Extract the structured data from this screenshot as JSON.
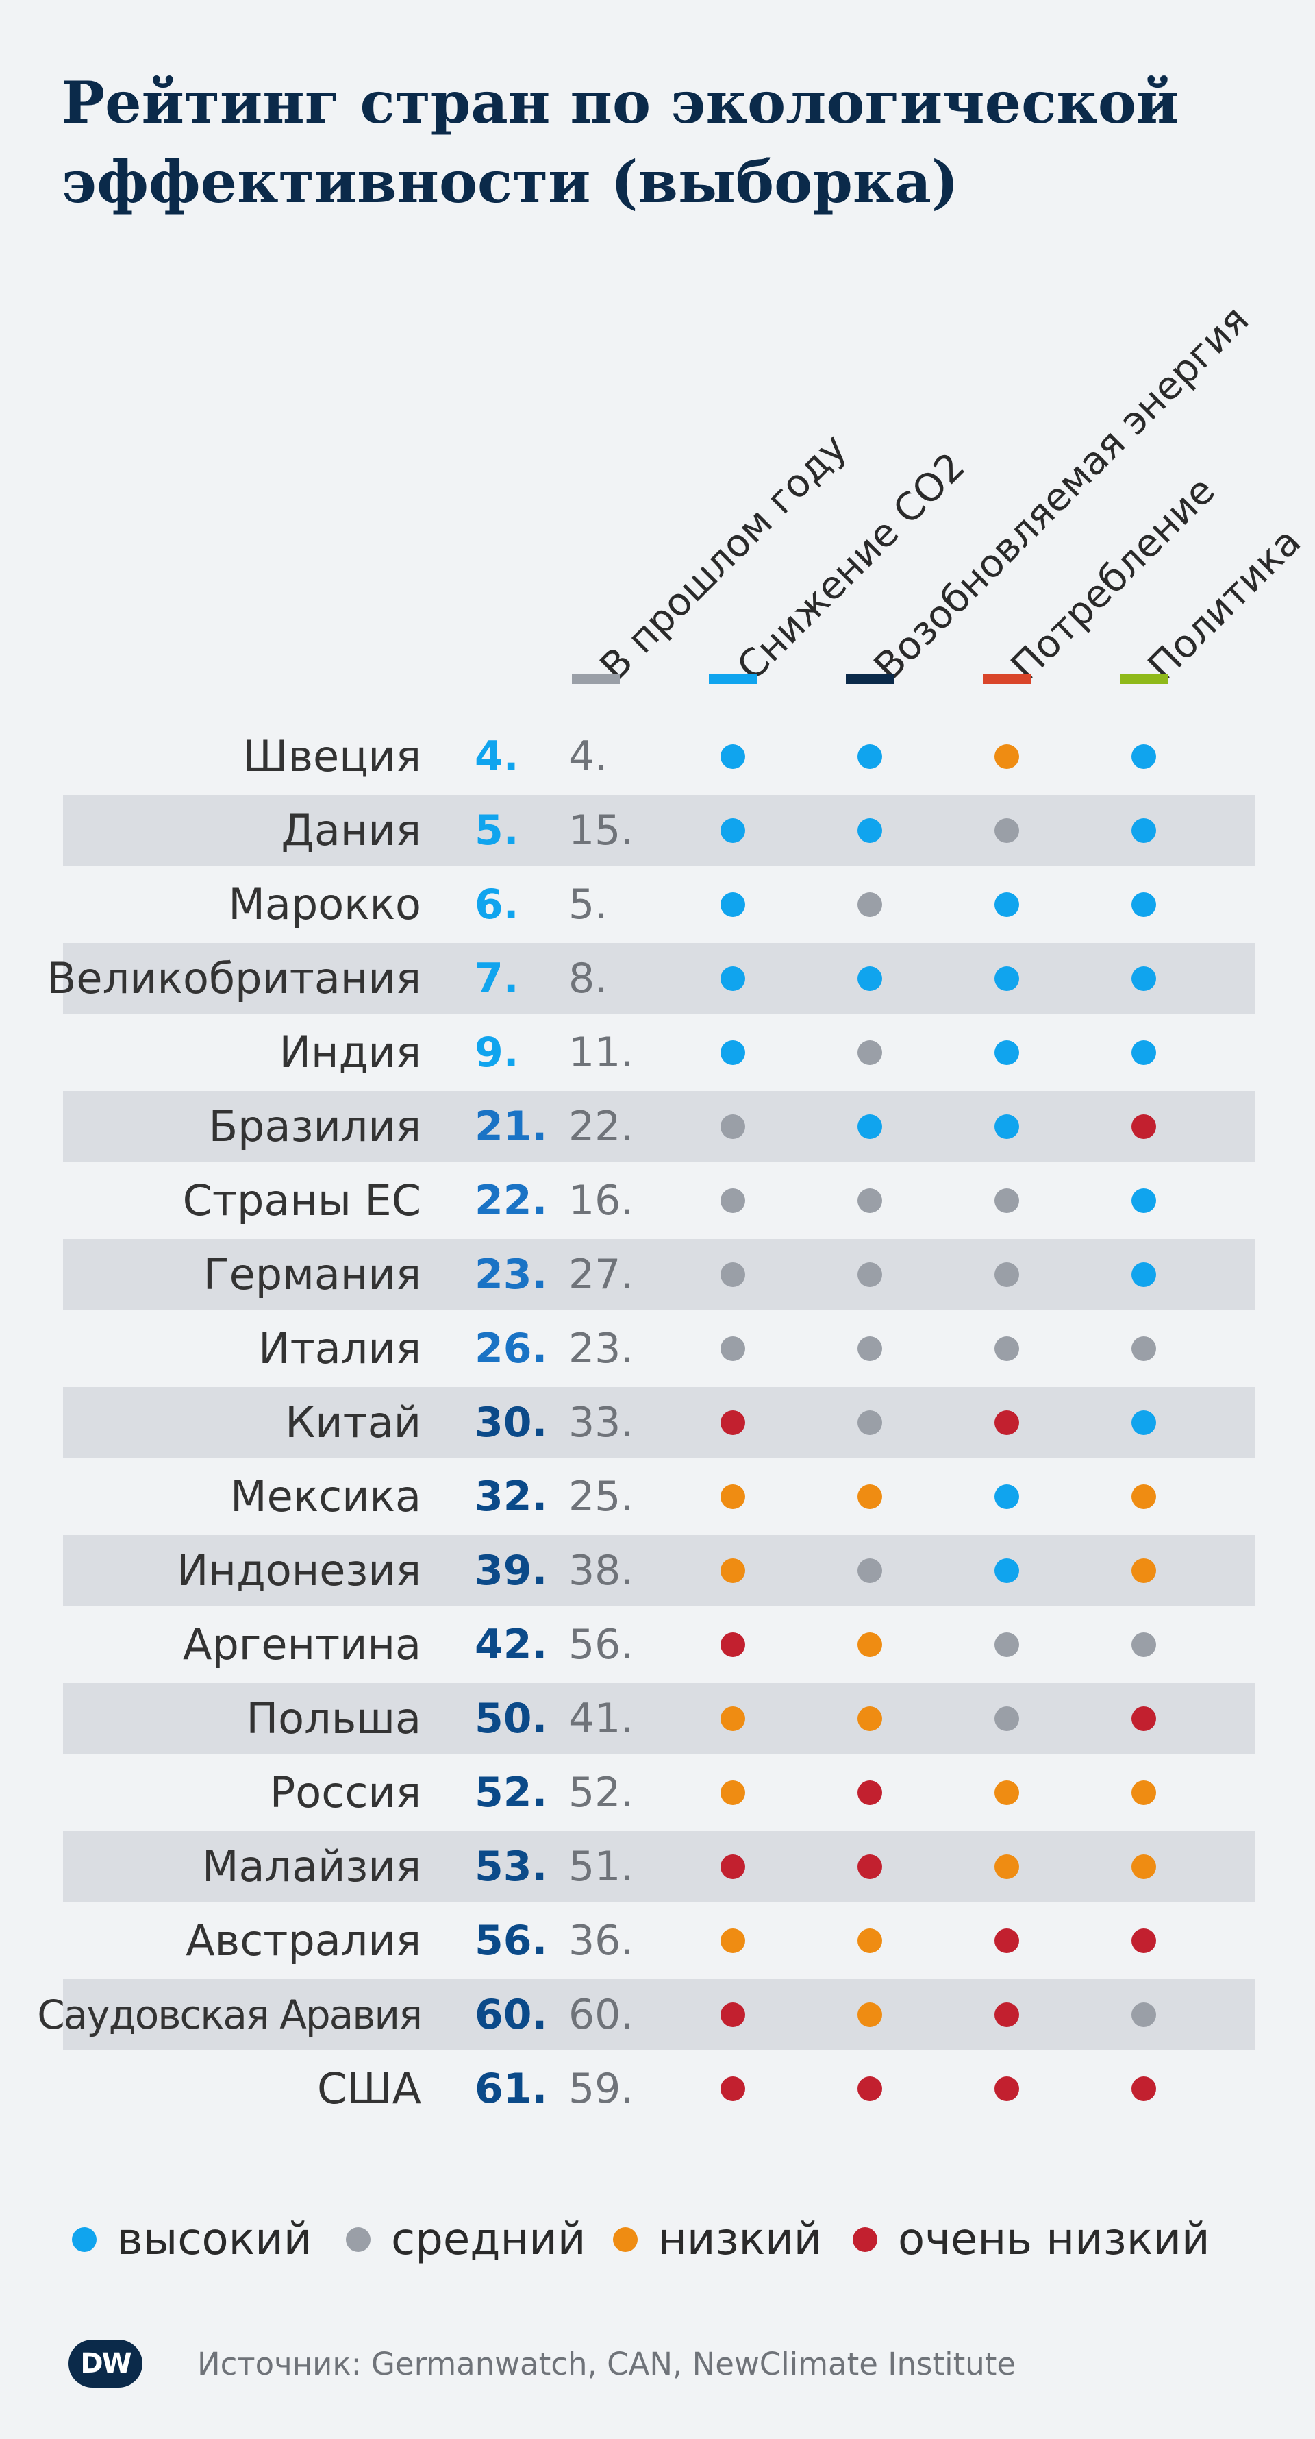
{
  "title": [
    "Рейтинг стран по экологической",
    "эффективности (выборка)"
  ],
  "legend": [
    {
      "key": "high",
      "label": "высокий"
    },
    {
      "key": "medium",
      "label": "средний"
    },
    {
      "key": "low",
      "label": "низкий"
    },
    {
      "key": "very_low",
      "label": "очень низкий"
    }
  ],
  "colors": {
    "high": "#10a4ee",
    "medium": "#9a9fa7",
    "low": "#ef8c12",
    "very_low": "#c2202f",
    "rank_light": "#10a4ee",
    "rank_mid": "#1a73c5",
    "rank_dark": "#0b4a89"
  },
  "source": "Источник: Germanwatch, CAN, NewClimate Institute",
  "logo": "DW",
  "chart_data": {
    "type": "table",
    "columns": [
      {
        "label": "В прошлом году",
        "color": "#9a9fa7"
      },
      {
        "label": "Снижение CO2",
        "color": "#10a4ee"
      },
      {
        "label": "Возобновляемая энергия",
        "color": "#0b2a4a"
      },
      {
        "label": "Потребление",
        "color": "#d9452a"
      },
      {
        "label": "Политика",
        "color": "#8fb91a"
      }
    ],
    "rows": [
      {
        "country": "Швеция",
        "rank": "4.",
        "previous": "4.",
        "ratings": [
          "high",
          "high",
          "low",
          "high"
        ]
      },
      {
        "country": "Дания",
        "rank": "5.",
        "previous": "15.",
        "ratings": [
          "high",
          "high",
          "medium",
          "high"
        ]
      },
      {
        "country": "Марокко",
        "rank": "6.",
        "previous": "5.",
        "ratings": [
          "high",
          "medium",
          "high",
          "high"
        ]
      },
      {
        "country": "Великобритания",
        "rank": "7.",
        "previous": "8.",
        "ratings": [
          "high",
          "high",
          "high",
          "high"
        ]
      },
      {
        "country": "Индия",
        "rank": "9.",
        "previous": "11.",
        "ratings": [
          "high",
          "medium",
          "high",
          "high"
        ]
      },
      {
        "country": "Бразилия",
        "rank": "21.",
        "previous": "22.",
        "ratings": [
          "medium",
          "high",
          "high",
          "very_low"
        ]
      },
      {
        "country": "Страны ЕС",
        "rank": "22.",
        "previous": "16.",
        "ratings": [
          "medium",
          "medium",
          "medium",
          "high"
        ]
      },
      {
        "country": "Германия",
        "rank": "23.",
        "previous": "27.",
        "ratings": [
          "medium",
          "medium",
          "medium",
          "high"
        ]
      },
      {
        "country": "Италия",
        "rank": "26.",
        "previous": "23.",
        "ratings": [
          "medium",
          "medium",
          "medium",
          "medium"
        ]
      },
      {
        "country": "Китай",
        "rank": "30.",
        "previous": "33.",
        "ratings": [
          "very_low",
          "medium",
          "very_low",
          "high"
        ]
      },
      {
        "country": "Мексика",
        "rank": "32.",
        "previous": "25.",
        "ratings": [
          "low",
          "low",
          "high",
          "low"
        ]
      },
      {
        "country": "Индонезия",
        "rank": "39.",
        "previous": "38.",
        "ratings": [
          "low",
          "medium",
          "high",
          "low"
        ]
      },
      {
        "country": "Аргентина",
        "rank": "42.",
        "previous": "56.",
        "ratings": [
          "very_low",
          "low",
          "medium",
          "medium"
        ]
      },
      {
        "country": "Польша",
        "rank": "50.",
        "previous": "41.",
        "ratings": [
          "low",
          "low",
          "medium",
          "very_low"
        ]
      },
      {
        "country": "Россия",
        "rank": "52.",
        "previous": "52.",
        "ratings": [
          "low",
          "very_low",
          "low",
          "low"
        ]
      },
      {
        "country": "Малайзия",
        "rank": "53.",
        "previous": "51.",
        "ratings": [
          "very_low",
          "very_low",
          "low",
          "low"
        ]
      },
      {
        "country": "Австралия",
        "rank": "56.",
        "previous": "36.",
        "ratings": [
          "low",
          "low",
          "very_low",
          "very_low"
        ]
      },
      {
        "country": "Саудовская Аравия",
        "rank": "60.",
        "previous": "60.",
        "ratings": [
          "very_low",
          "low",
          "very_low",
          "medium"
        ]
      },
      {
        "country": "США",
        "rank": "61.",
        "previous": "59.",
        "ratings": [
          "very_low",
          "very_low",
          "very_low",
          "very_low"
        ]
      }
    ]
  }
}
